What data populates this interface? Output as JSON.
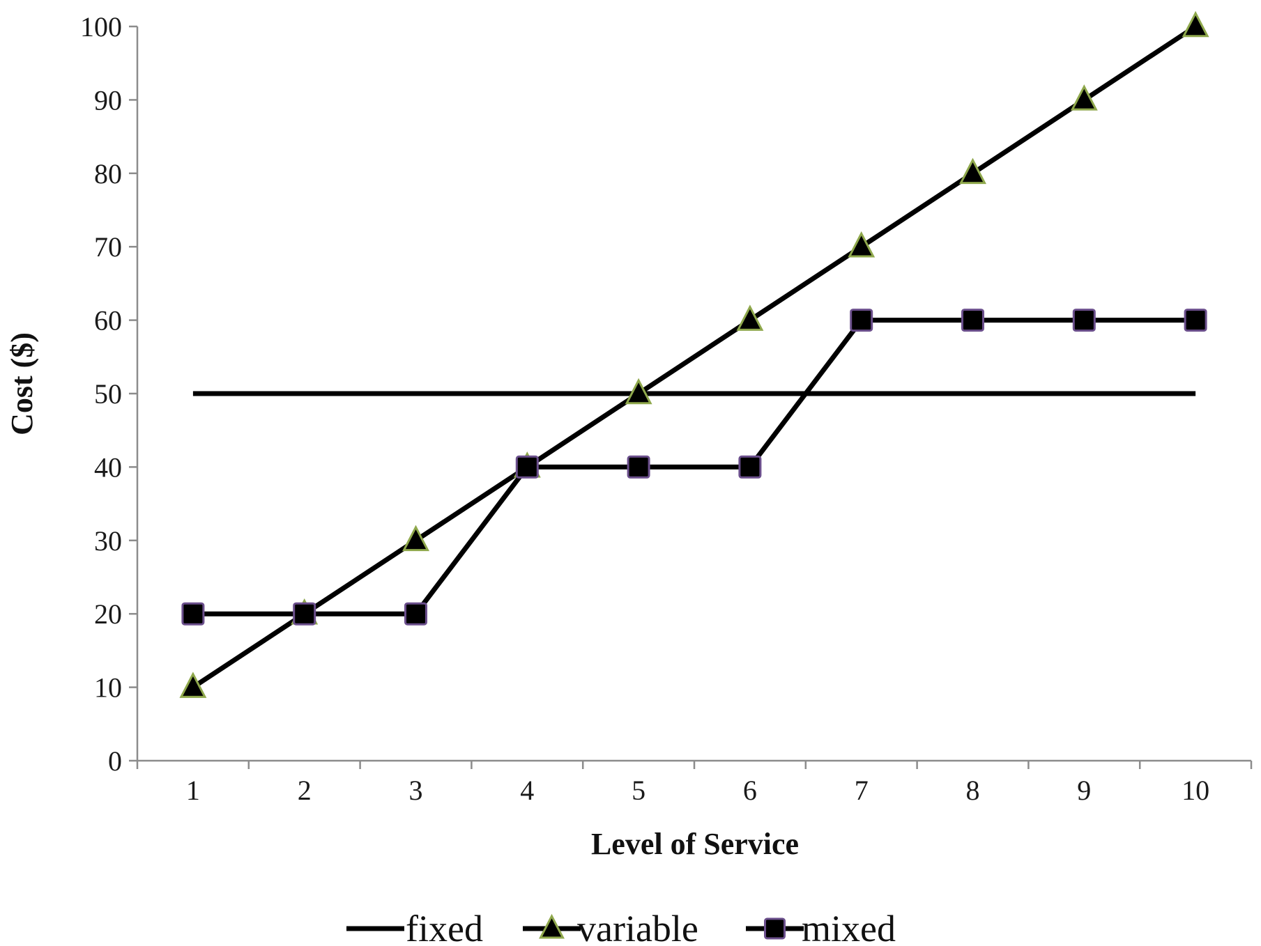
{
  "chart_data": {
    "type": "line",
    "title": "",
    "xlabel": "Level of Service",
    "ylabel": "Cost ($)",
    "categories": [
      "1",
      "2",
      "3",
      "4",
      "5",
      "6",
      "7",
      "8",
      "9",
      "10"
    ],
    "ylim": [
      0,
      100
    ],
    "yticks": [
      "0",
      "10",
      "20",
      "30",
      "40",
      "50",
      "60",
      "70",
      "80",
      "90",
      "100"
    ],
    "grid": false,
    "legend_position": "bottom",
    "series": [
      {
        "name": "fixed",
        "marker": "none",
        "values": [
          50,
          50,
          50,
          50,
          50,
          50,
          50,
          50,
          50,
          50
        ]
      },
      {
        "name": "variable",
        "marker": "triangle",
        "values": [
          10,
          20,
          30,
          40,
          50,
          60,
          70,
          80,
          90,
          100
        ]
      },
      {
        "name": "mixed",
        "marker": "square",
        "values": [
          20,
          20,
          20,
          40,
          40,
          40,
          60,
          60,
          60,
          60
        ]
      }
    ],
    "colors": {
      "line": "#000000",
      "axis": "#8c8c8c",
      "triangle_edge": "#8fa84c",
      "square_edge": "#6b4f8c"
    }
  }
}
